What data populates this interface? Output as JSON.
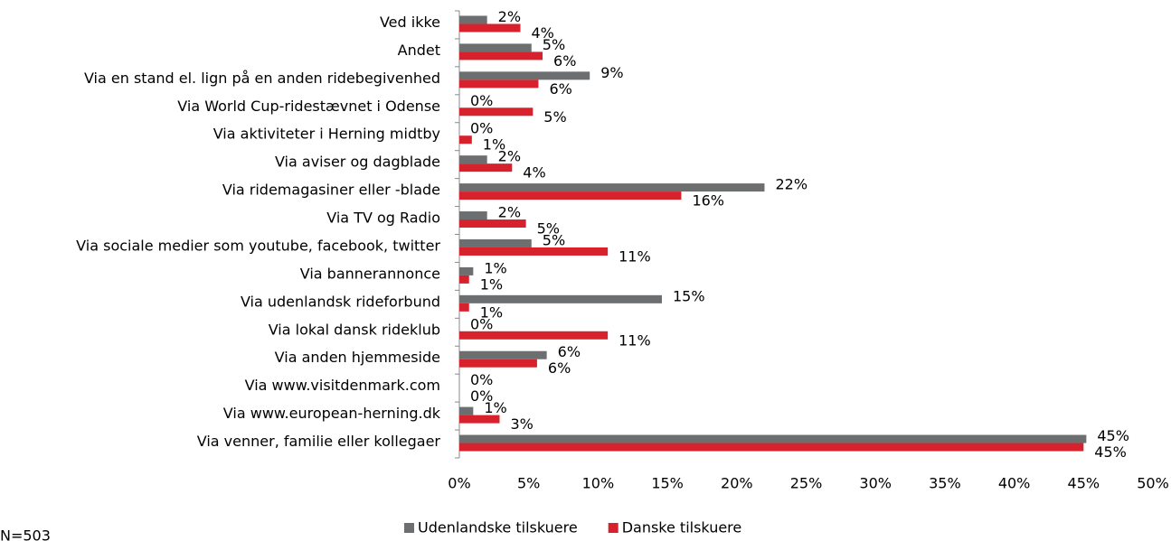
{
  "chart_data": {
    "type": "barh",
    "categories": [
      "Ved ikke",
      "Andet",
      "Via en stand el. lign på en anden ridebegivenhed",
      "Via World Cup-ridestævnet i Odense",
      "Via aktiviteter i Herning midtby",
      "Via aviser og dagblade",
      "Via ridemagasiner eller -blade",
      "Via TV og Radio",
      "Via sociale medier som youtube, facebook, twitter",
      "Via bannerannonce",
      "Via udenlandsk rideforbund",
      "Via lokal dansk rideklub",
      "Via anden hjemmeside",
      "Via www.visitdenmark.com",
      "Via www.european-herning.dk",
      "Via venner, familie eller kollegaer"
    ],
    "series": [
      {
        "name": "Udenlandske tilskuere",
        "color": "#6d6e70",
        "values": [
          2.0,
          5.2,
          9.4,
          0,
          0,
          2.0,
          22.0,
          2.0,
          5.2,
          1.0,
          14.6,
          0,
          6.3,
          0,
          1.0,
          45.2
        ],
        "value_labels": [
          "2%",
          "5%",
          "9%",
          "0%",
          "0%",
          "2%",
          "22%",
          "2%",
          "5%",
          "1%",
          "15%",
          "0%",
          "6%",
          "0%",
          "1%",
          "45%"
        ]
      },
      {
        "name": "Danske tilskuere",
        "color": "#d7212d",
        "values": [
          4.4,
          6.0,
          5.7,
          5.3,
          0.9,
          3.8,
          16.0,
          4.8,
          10.7,
          0.7,
          0.7,
          10.7,
          5.6,
          0,
          2.9,
          45.0
        ],
        "value_labels": [
          "4%",
          "6%",
          "6%",
          "5%",
          "1%",
          "4%",
          "16%",
          "5%",
          "11%",
          "1%",
          "1%",
          "11%",
          "6%",
          "0%",
          "3%",
          "45%"
        ]
      }
    ],
    "xlim": [
      0,
      50
    ],
    "xticks": [
      {
        "value": 0,
        "label": "0%"
      },
      {
        "value": 5,
        "label": "5%"
      },
      {
        "value": 10,
        "label": "10%"
      },
      {
        "value": 15,
        "label": "15%"
      },
      {
        "value": 20,
        "label": "20%"
      },
      {
        "value": 25,
        "label": "25%"
      },
      {
        "value": 30,
        "label": "30%"
      },
      {
        "value": 35,
        "label": "35%"
      },
      {
        "value": 40,
        "label": "40%"
      },
      {
        "value": 45,
        "label": "45%"
      },
      {
        "value": 50,
        "label": "50%"
      }
    ],
    "legend": "bottom",
    "note": "N=503"
  }
}
